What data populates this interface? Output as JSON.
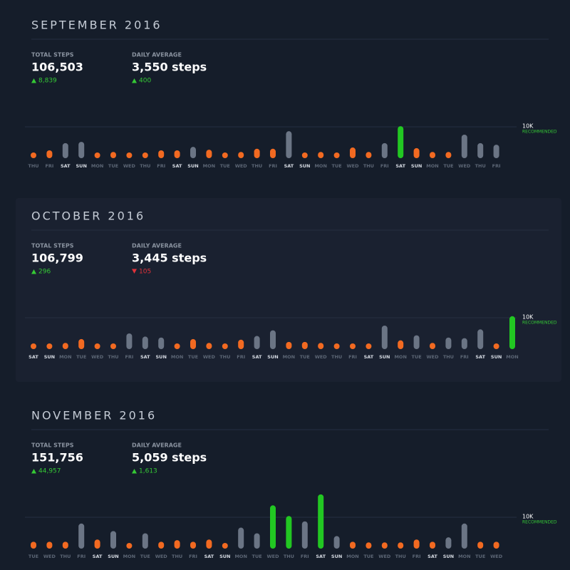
{
  "chart_data": [
    {
      "type": "bar",
      "title": "SEPTEMBER 2016",
      "stats": [
        {
          "label": "TOTAL STEPS",
          "value": "106,503",
          "change": "8,839",
          "direction": "up"
        },
        {
          "label": "DAILY AVERAGE",
          "value": "3,550 steps",
          "change": "400",
          "direction": "up"
        }
      ],
      "reference": {
        "value": 10000,
        "label": "10K"
      },
      "reference_note": "RECOMMENDED",
      "ylim": [
        0,
        20000
      ],
      "categories": [
        "THU",
        "FRI",
        "SAT",
        "SUN",
        "MON",
        "TUE",
        "WED",
        "THU",
        "FRI",
        "SAT",
        "SUN",
        "MON",
        "TUE",
        "WED",
        "THU",
        "FRI",
        "SAT",
        "SUN",
        "MON",
        "TUE",
        "WED",
        "THU",
        "FRI",
        "SAT",
        "SUN",
        "MON",
        "TUE",
        "WED",
        "THU",
        "FRI"
      ],
      "values": [
        1800,
        2500,
        4800,
        5200,
        1600,
        2000,
        1600,
        1600,
        2500,
        2500,
        3600,
        2700,
        1600,
        2000,
        3000,
        3000,
        8600,
        1600,
        2000,
        1600,
        3400,
        2000,
        4800,
        10200,
        3200,
        2000,
        2000,
        7500,
        4800,
        4300
      ],
      "colors": [
        "#f26a21",
        "#f26a21",
        "#6b7585",
        "#6b7585",
        "#f26a21",
        "#f26a21",
        "#f26a21",
        "#f26a21",
        "#f26a21",
        "#f26a21",
        "#6b7585",
        "#f26a21",
        "#f26a21",
        "#f26a21",
        "#f26a21",
        "#f26a21",
        "#6b7585",
        "#f26a21",
        "#f26a21",
        "#f26a21",
        "#f26a21",
        "#f26a21",
        "#6b7585",
        "#22c722",
        "#f26a21",
        "#f26a21",
        "#f26a21",
        "#6b7585",
        "#6b7585",
        "#6b7585"
      ]
    },
    {
      "type": "bar",
      "title": "OCTOBER 2016",
      "stats": [
        {
          "label": "TOTAL STEPS",
          "value": "106,799",
          "change": "296",
          "direction": "up"
        },
        {
          "label": "DAILY AVERAGE",
          "value": "3,445 steps",
          "change": "105",
          "direction": "down"
        }
      ],
      "reference": {
        "value": 10000,
        "label": "10K"
      },
      "reference_note": "RECOMMENDED",
      "ylim": [
        0,
        20000
      ],
      "categories": [
        "SAT",
        "SUN",
        "MON",
        "TUE",
        "WED",
        "THU",
        "FRI",
        "SAT",
        "SUN",
        "MON",
        "TUE",
        "WED",
        "THU",
        "FRI",
        "SAT",
        "SUN",
        "MON",
        "TUE",
        "WED",
        "THU",
        "FRI",
        "SAT",
        "SUN",
        "MON",
        "TUE",
        "WED",
        "THU",
        "FRI",
        "SAT",
        "SUN",
        "MON"
      ],
      "values": [
        1600,
        1600,
        2000,
        3200,
        1600,
        1600,
        5000,
        4000,
        3700,
        1400,
        3200,
        2000,
        1600,
        3000,
        4200,
        6000,
        2300,
        2300,
        2000,
        1600,
        1600,
        1600,
        7500,
        2800,
        4400,
        2000,
        3700,
        3500,
        6300,
        1400,
        10500
      ],
      "colors": [
        "#f26a21",
        "#f26a21",
        "#f26a21",
        "#f26a21",
        "#f26a21",
        "#f26a21",
        "#6b7585",
        "#6b7585",
        "#6b7585",
        "#f26a21",
        "#f26a21",
        "#f26a21",
        "#f26a21",
        "#f26a21",
        "#6b7585",
        "#6b7585",
        "#f26a21",
        "#f26a21",
        "#f26a21",
        "#f26a21",
        "#f26a21",
        "#f26a21",
        "#6b7585",
        "#f26a21",
        "#6b7585",
        "#f26a21",
        "#6b7585",
        "#6b7585",
        "#6b7585",
        "#f26a21",
        "#22c722"
      ]
    },
    {
      "type": "bar",
      "title": "NOVEMBER 2016",
      "stats": [
        {
          "label": "TOTAL STEPS",
          "value": "151,756",
          "change": "44,957",
          "direction": "up"
        },
        {
          "label": "DAILY AVERAGE",
          "value": "5,059 steps",
          "change": "1,613",
          "direction": "up"
        }
      ],
      "reference": {
        "value": 10000,
        "label": "10K"
      },
      "reference_note": "RECOMMENDED",
      "ylim": [
        0,
        20000
      ],
      "categories": [
        "TUE",
        "WED",
        "THU",
        "FRI",
        "SAT",
        "SUN",
        "MON",
        "TUE",
        "WED",
        "THU",
        "FRI",
        "SAT",
        "SUN",
        "MON",
        "TUE",
        "WED",
        "THU",
        "FRI",
        "SAT",
        "SUN",
        "MON",
        "TUE",
        "WED",
        "THU",
        "FRI",
        "SAT",
        "SUN",
        "MON",
        "TUE",
        "WED"
      ],
      "values": [
        2200,
        2200,
        2200,
        8000,
        2900,
        5600,
        1300,
        4900,
        2200,
        2700,
        2200,
        2900,
        1300,
        6700,
        4900,
        13800,
        10400,
        8700,
        17300,
        4000,
        2200,
        2000,
        2000,
        2000,
        2900,
        2200,
        3600,
        8000,
        2200,
        2200
      ],
      "colors": [
        "#f26a21",
        "#f26a21",
        "#f26a21",
        "#6b7585",
        "#f26a21",
        "#6b7585",
        "#f26a21",
        "#6b7585",
        "#f26a21",
        "#f26a21",
        "#f26a21",
        "#f26a21",
        "#f26a21",
        "#6b7585",
        "#6b7585",
        "#22c722",
        "#22c722",
        "#6b7585",
        "#22c722",
        "#6b7585",
        "#f26a21",
        "#f26a21",
        "#f26a21",
        "#f26a21",
        "#f26a21",
        "#f26a21",
        "#6b7585",
        "#6b7585",
        "#f26a21",
        "#f26a21"
      ]
    }
  ]
}
